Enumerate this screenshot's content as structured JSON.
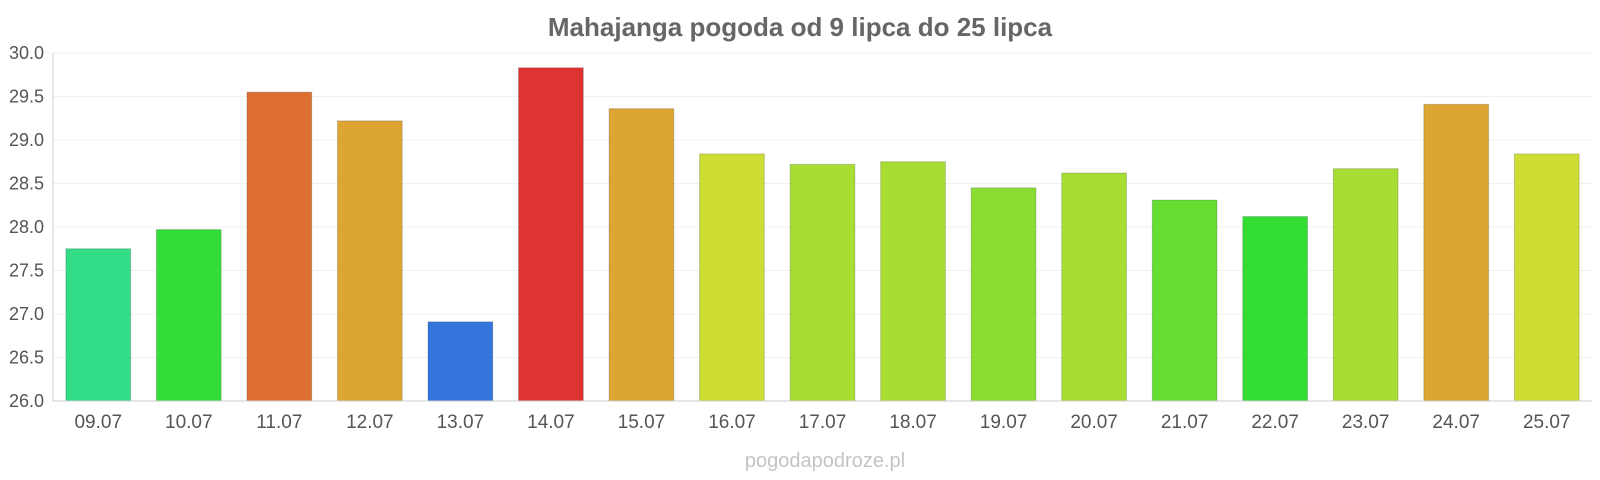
{
  "chart_data": {
    "type": "bar",
    "title": "Mahajanga pogoda od 9 lipca do 25 lipca",
    "categories": [
      "09.07",
      "10.07",
      "11.07",
      "12.07",
      "13.07",
      "14.07",
      "15.07",
      "16.07",
      "17.07",
      "18.07",
      "19.07",
      "20.07",
      "21.07",
      "22.07",
      "23.07",
      "24.07",
      "25.07"
    ],
    "values": [
      27.75,
      27.97,
      29.55,
      29.22,
      26.91,
      29.83,
      29.36,
      28.84,
      28.72,
      28.75,
      28.45,
      28.62,
      28.31,
      28.12,
      28.67,
      29.41,
      28.84
    ],
    "colors": [
      "#33dd88",
      "#33dd3a",
      "#dd6f33",
      "#dda633",
      "#3375dd",
      "#dd3333",
      "#dda633",
      "#cedd33",
      "#a8dd33",
      "#a8dd33",
      "#8add33",
      "#a8dd33",
      "#66dd33",
      "#33dd33",
      "#a8dd33",
      "#dda633",
      "#cedd33"
    ],
    "ylim": [
      26.0,
      30.0
    ],
    "yticks": [
      "26.0",
      "26.5",
      "27.0",
      "27.5",
      "28.0",
      "28.5",
      "29.0",
      "29.5",
      "30.0"
    ],
    "xlabel": "",
    "ylabel": "",
    "grid": true
  },
  "watermark": "pogodapodroze.pl"
}
